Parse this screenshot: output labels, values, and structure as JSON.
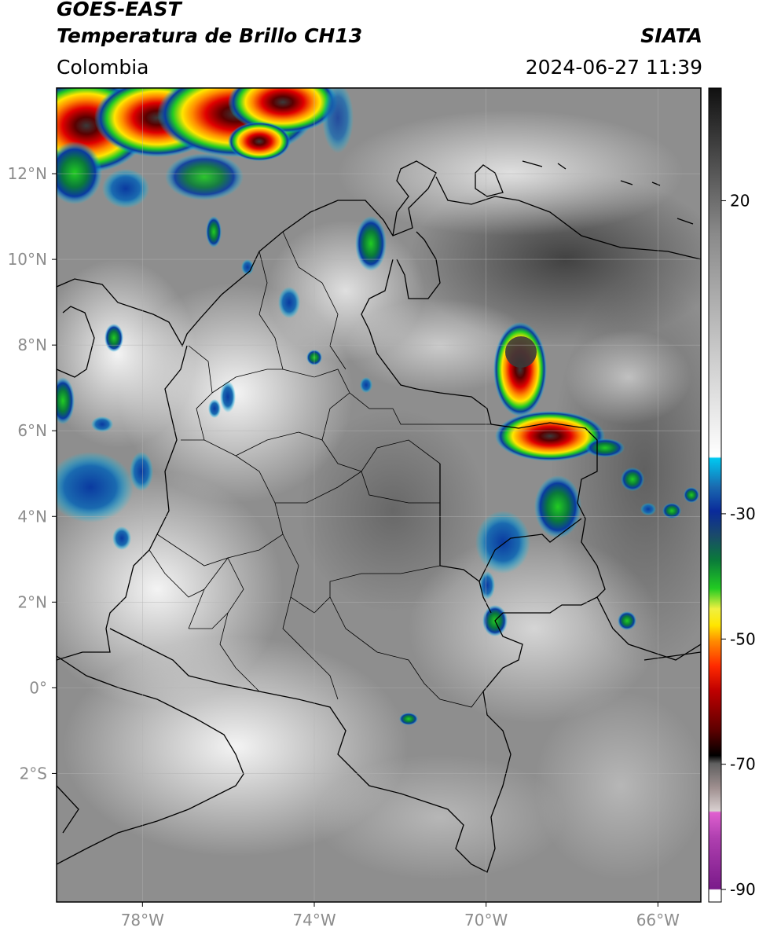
{
  "header": {
    "title_line1": "GOES-EAST",
    "title_line2": "Temperatura de Brillo CH13",
    "region": "Colombia",
    "source": "SIATA",
    "datetime": "2024-06-27 11:39"
  },
  "map": {
    "lon_range": [
      -80,
      -65
    ],
    "lat_range": [
      -5,
      14
    ],
    "lon_ticks": [
      {
        "value": -78,
        "label": "78°W"
      },
      {
        "value": -74,
        "label": "74°W"
      },
      {
        "value": -70,
        "label": "70°W"
      },
      {
        "value": -66,
        "label": "66°W"
      }
    ],
    "lat_ticks": [
      {
        "value": 12,
        "label": "12°N"
      },
      {
        "value": 10,
        "label": "10°N"
      },
      {
        "value": 8,
        "label": "8°N"
      },
      {
        "value": 6,
        "label": "6°N"
      },
      {
        "value": 4,
        "label": "4°N"
      },
      {
        "value": 2,
        "label": "2°N"
      },
      {
        "value": 0,
        "label": "0°"
      },
      {
        "value": -2,
        "label": "2°S"
      }
    ],
    "grid": true
  },
  "colorbar": {
    "range": [
      -92,
      38
    ],
    "ticks": [
      {
        "value": 20,
        "label": "20"
      },
      {
        "value": -30,
        "label": "-30"
      },
      {
        "value": -50,
        "label": "-50"
      },
      {
        "value": -70,
        "label": "-70"
      },
      {
        "value": -90,
        "label": "-90"
      }
    ],
    "colors": {
      "warm_dark": "#6e6e6e",
      "warm_light": "#ffffff",
      "cyan": "#00c8f0",
      "blue": "#0a2a9a",
      "green": "#22cc22",
      "yellow": "#ffe600",
      "orange": "#ff8a00",
      "red": "#e00000",
      "dark_red": "#5a0000",
      "black": "#000000",
      "magenta": "#e060d0",
      "purple": "#7a1a8a"
    }
  }
}
